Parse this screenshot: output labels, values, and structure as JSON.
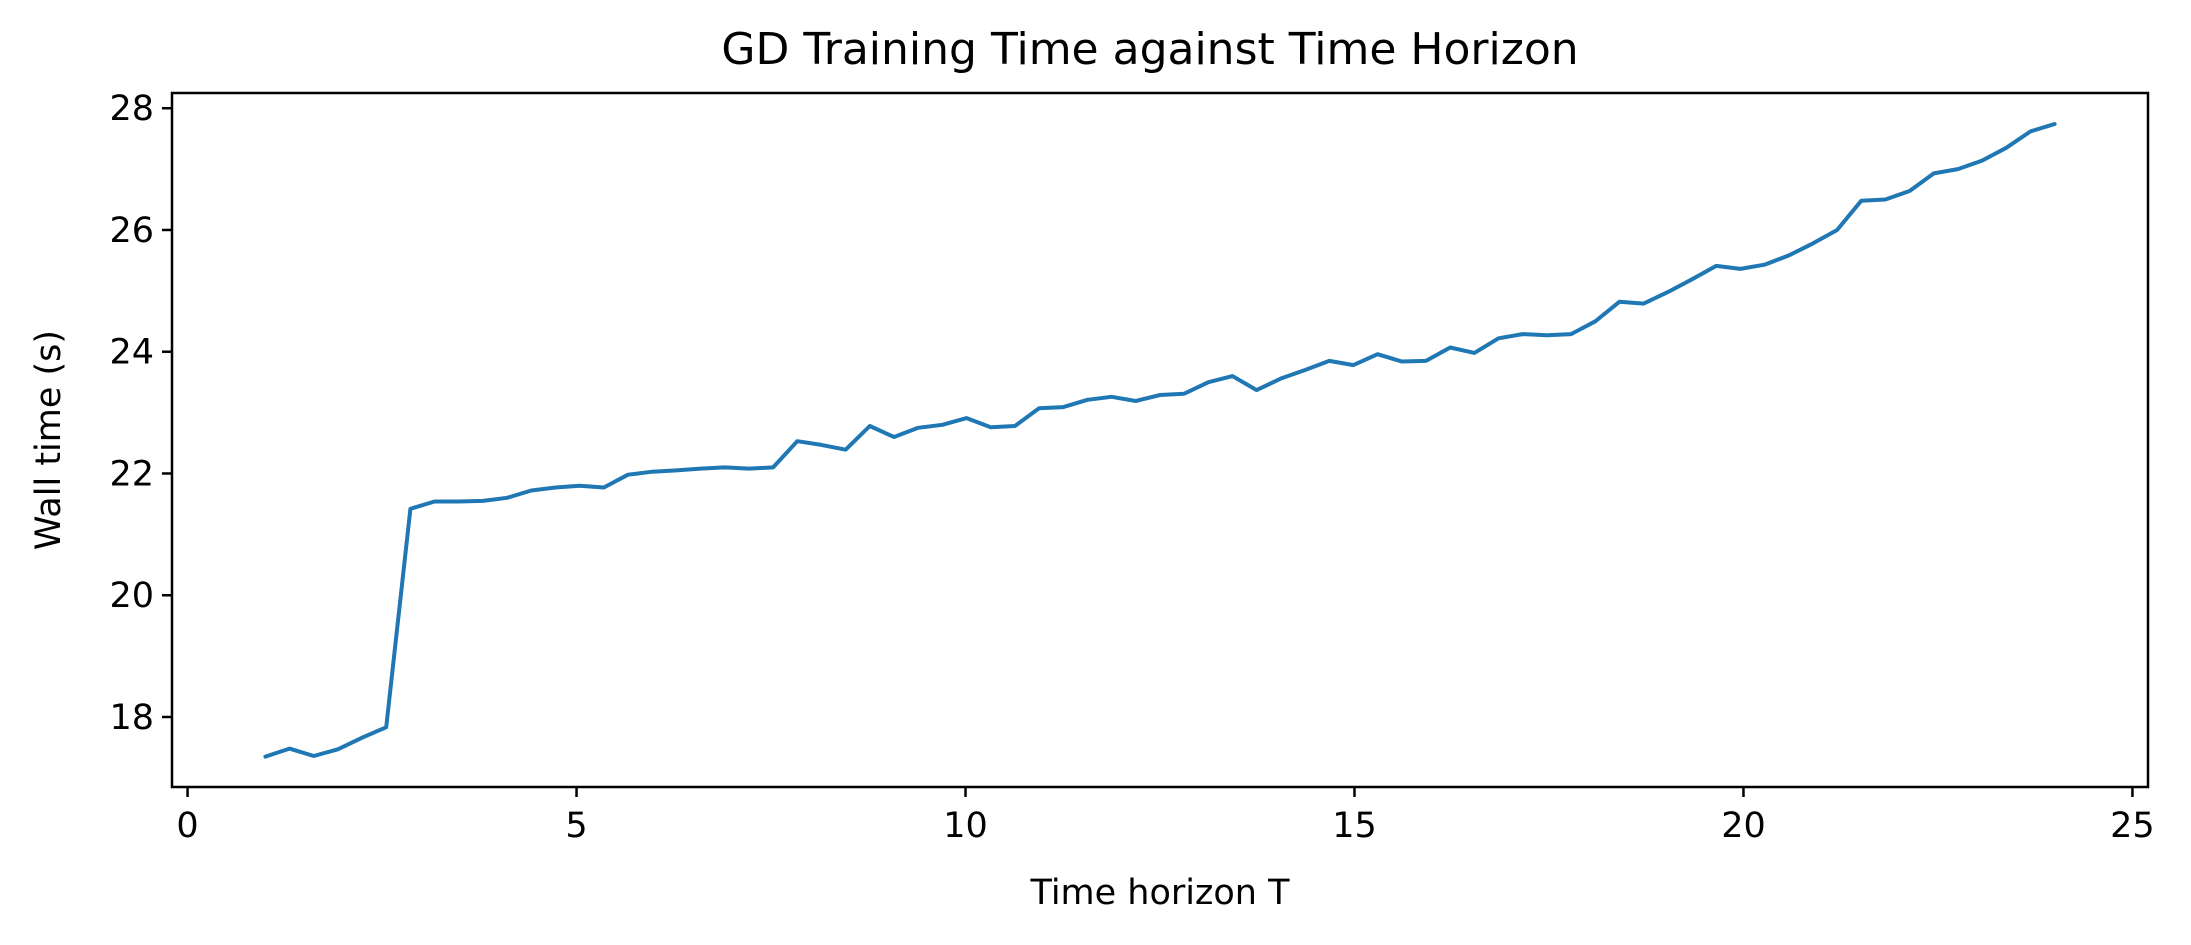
{
  "chart_data": {
    "type": "line",
    "title": "GD Training Time against Time Horizon",
    "xlabel": "Time horizon T",
    "ylabel": "Wall time (s)",
    "xlim": [
      -0.2,
      25.2
    ],
    "ylim": [
      16.85,
      28.25
    ],
    "xticks": [
      0,
      5,
      10,
      15,
      20,
      25
    ],
    "yticks": [
      18,
      20,
      22,
      24,
      26,
      28
    ],
    "grid": false,
    "legend": "none",
    "colors": {
      "line": "#1f77b4"
    },
    "series": [
      {
        "x": [
          1.0,
          1.311,
          1.622,
          1.932,
          2.243,
          2.554,
          2.865,
          3.176,
          3.486,
          3.797,
          4.108,
          4.419,
          4.73,
          5.041,
          5.351,
          5.662,
          5.973,
          6.284,
          6.595,
          6.905,
          7.216,
          7.527,
          7.838,
          8.149,
          8.459,
          8.77,
          9.081,
          9.392,
          9.703,
          10.014,
          10.324,
          10.635,
          10.946,
          11.257,
          11.568,
          11.878,
          12.189,
          12.5,
          12.811,
          13.122,
          13.432,
          13.743,
          14.054,
          14.365,
          14.676,
          14.986,
          15.297,
          15.608,
          15.919,
          16.23,
          16.541,
          16.851,
          17.162,
          17.473,
          17.784,
          18.095,
          18.405,
          18.716,
          19.027,
          19.338,
          19.649,
          19.959,
          20.27,
          20.581,
          20.892,
          21.203,
          21.514,
          21.824,
          22.135,
          22.446,
          22.757,
          23.068,
          23.378,
          23.689,
          24.0
        ],
        "values": [
          17.35,
          17.48,
          17.36,
          17.47,
          17.66,
          17.83,
          21.42,
          21.54,
          21.54,
          21.55,
          21.6,
          21.72,
          21.77,
          21.8,
          21.77,
          21.98,
          22.03,
          22.05,
          22.08,
          22.1,
          22.08,
          22.1,
          22.53,
          22.47,
          22.39,
          22.78,
          22.6,
          22.75,
          22.8,
          22.91,
          22.76,
          22.78,
          23.07,
          23.09,
          23.21,
          23.26,
          23.19,
          23.29,
          23.31,
          23.5,
          23.6,
          23.37,
          23.56,
          23.7,
          23.85,
          23.78,
          23.96,
          23.84,
          23.85,
          24.07,
          23.98,
          24.22,
          24.29,
          24.27,
          24.29,
          24.5,
          24.82,
          24.79,
          24.98,
          25.19,
          25.41,
          25.36,
          25.43,
          25.58,
          25.78,
          26.0,
          26.48,
          26.5,
          26.64,
          26.93,
          27.0,
          27.14,
          27.35,
          27.62,
          27.74
        ]
      }
    ]
  }
}
